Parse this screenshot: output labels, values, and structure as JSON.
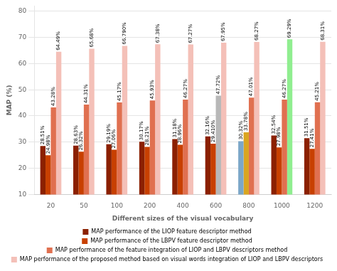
{
  "chart_data": {
    "type": "bar",
    "xlabel": "Different sizes of the visual vocabulary",
    "ylabel": "MAP (%)",
    "categories": [
      20,
      50,
      100,
      200,
      400,
      600,
      800,
      1000,
      1200
    ],
    "series": [
      {
        "name": "MAP performance of the LIOP feature descriptor method",
        "color": "#8B2000",
        "colors": [
          "#8B2000",
          "#8B2000",
          "#8B2000",
          "#8B2000",
          "#8B2000",
          "#8B2000",
          "#7BA7C8",
          "#8B2000",
          "#8B2000"
        ],
        "values": [
          28.51,
          28.63,
          29.19,
          30.17,
          31.18,
          32.16,
          30.32,
          32.54,
          31.51
        ],
        "value_labels": [
          "28.51%",
          "28.63%",
          "29.19%",
          "30.17%",
          "31.18%",
          "32.16%",
          "30.32%",
          "32.54%",
          "31.51%"
        ]
      },
      {
        "name": "MAP performance of the LBPV feature descriptor method",
        "color": "#C84000",
        "colors": [
          "#C84000",
          "#C84000",
          "#C84000",
          "#C84000",
          "#C84000",
          "#C84000",
          "#DAA520",
          "#C84000",
          "#C84000"
        ],
        "values": [
          24.98,
          26.32,
          27.06,
          28.21,
          28.96,
          29.41,
          33.78,
          27.98,
          27.41
        ],
        "value_labels": [
          "24.98%",
          "26.32%",
          "27.06%",
          "28.21%",
          "28.96%",
          "29.410%",
          "33.78%",
          "27.98%",
          "27.41%"
        ]
      },
      {
        "name": "MAP performance of the feature integration of LIOP and LBPV descriptors method",
        "color": "#E07050",
        "colors": [
          "#E07050",
          "#E07050",
          "#E07050",
          "#E07050",
          "#E07050",
          "#B8B8B8",
          "#E07050",
          "#E07050",
          "#E07050"
        ],
        "values": [
          43.28,
          44.31,
          45.17,
          45.93,
          46.27,
          47.72,
          47.01,
          46.27,
          45.21
        ],
        "value_labels": [
          "43.28%",
          "44.31%",
          "45.17%",
          "45.93%",
          "46.27%",
          "47.72%",
          "47.01%",
          "46.27%",
          "45.21%"
        ]
      },
      {
        "name": "MAP performance of the proposed method based on visual words integration of LIOP and LBPV descriptors",
        "color": "#F4C0B8",
        "colors": [
          "#F4C0B8",
          "#F4C0B8",
          "#F4C0B8",
          "#F4C0B8",
          "#F4C0B8",
          "#F4C0B8",
          "#F4C0B8",
          "#90EE90",
          "#F4C0B8"
        ],
        "values": [
          64.49,
          65.68,
          66.79,
          67.38,
          67.27,
          67.95,
          68.27,
          69.29,
          68.31
        ],
        "value_labels": [
          "64.49%",
          "65.68%",
          "66.790%",
          "67.38%",
          "67.27%",
          "67.95%",
          "68.27%",
          "69.29%",
          "68.31%"
        ]
      }
    ],
    "ylim": [
      10,
      82
    ],
    "yticks": [
      10,
      20,
      30,
      40,
      50,
      60,
      70,
      80
    ],
    "grid": "y",
    "legend": "bottom",
    "data_labels": true
  }
}
